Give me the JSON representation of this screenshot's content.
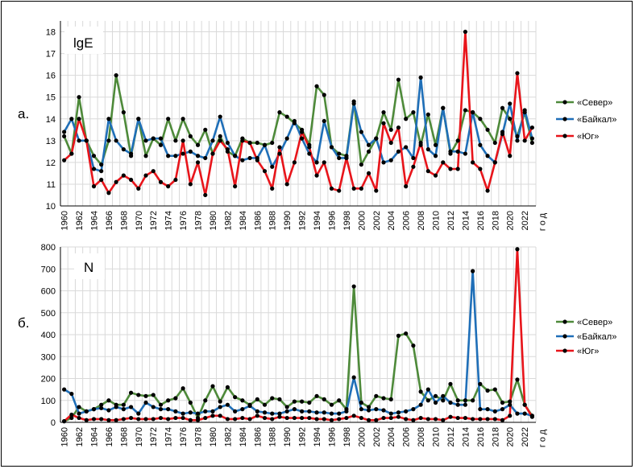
{
  "chart_data": [
    {
      "type": "line",
      "panel_label": "а.",
      "title": "lgE",
      "xlabel": "год",
      "ylim": [
        10,
        18.5
      ],
      "yticks": [
        10,
        11,
        12,
        13,
        14,
        15,
        16,
        17,
        18
      ],
      "x": [
        1960,
        1961,
        1962,
        1963,
        1964,
        1965,
        1966,
        1967,
        1968,
        1969,
        1970,
        1971,
        1972,
        1973,
        1974,
        1975,
        1976,
        1977,
        1978,
        1979,
        1980,
        1981,
        1982,
        1983,
        1984,
        1985,
        1986,
        1987,
        1988,
        1989,
        1990,
        1991,
        1992,
        1993,
        1994,
        1995,
        1996,
        1997,
        1998,
        1999,
        2000,
        2001,
        2002,
        2003,
        2004,
        2005,
        2006,
        2007,
        2008,
        2009,
        2010,
        2011,
        2012,
        2013,
        2014,
        2015,
        2016,
        2017,
        2018,
        2019,
        2020,
        2021,
        2022,
        2023
      ],
      "xticks": [
        "1960",
        "1962",
        "1964",
        "1966",
        "1968",
        "1970",
        "1972",
        "1974",
        "1976",
        "1978",
        "1980",
        "1982",
        "1984",
        "1986",
        "1988",
        "1990",
        "1992",
        "1994",
        "1996",
        "1998",
        "2000",
        "2002",
        "2004",
        "2006",
        "2008",
        "2010",
        "2012",
        "2014",
        "2016",
        "2018",
        "2020",
        "2022"
      ],
      "grid": true,
      "legend": "right",
      "series": [
        {
          "name": "«Север»",
          "color": "#4e8a3a",
          "values": [
            13.2,
            12.4,
            15.0,
            13.0,
            12.3,
            11.9,
            13.0,
            16.0,
            14.3,
            12.3,
            14.0,
            12.3,
            13.1,
            12.8,
            14.0,
            13.0,
            14.0,
            13.2,
            12.8,
            13.5,
            12.4,
            13.2,
            12.5,
            12.3,
            13.1,
            12.9,
            12.9,
            12.8,
            12.9,
            14.3,
            14.1,
            13.8,
            13.5,
            12.8,
            15.5,
            15.1,
            12.7,
            12.4,
            12.3,
            14.8,
            11.9,
            12.5,
            13.1,
            14.3,
            13.5,
            15.8,
            14.0,
            14.3,
            12.8,
            14.2,
            12.8,
            14.5,
            12.4,
            13.0,
            14.4,
            14.3,
            14.0,
            13.5,
            12.9,
            14.5,
            14.0,
            13.2,
            14.3,
            12.9
          ]
        },
        {
          "name": "«Байкал»",
          "color": "#1f6fb8",
          "values": [
            13.4,
            14.0,
            13.0,
            13.0,
            11.7,
            11.6,
            14.0,
            13.0,
            12.6,
            12.4,
            14.0,
            13.0,
            13.1,
            13.1,
            12.3,
            12.3,
            12.4,
            12.5,
            12.3,
            12.2,
            13.0,
            14.1,
            12.9,
            12.3,
            12.1,
            12.2,
            12.2,
            12.8,
            11.8,
            12.4,
            13.1,
            13.9,
            13.1,
            12.4,
            12.0,
            13.9,
            12.7,
            12.2,
            12.2,
            14.7,
            13.4,
            12.8,
            13.1,
            12.0,
            12.1,
            12.5,
            12.7,
            12.2,
            15.9,
            12.6,
            12.3,
            14.5,
            12.5,
            12.5,
            12.4,
            14.3,
            12.8,
            12.3,
            12.0,
            13.3,
            14.7,
            13.0,
            14.4,
            13.1
          ]
        },
        {
          "name": "«Юг»",
          "color": "#e8141a",
          "values": [
            12.1,
            12.4,
            14.0,
            13.0,
            10.9,
            11.2,
            10.6,
            11.1,
            11.4,
            11.2,
            10.8,
            11.4,
            11.6,
            11.1,
            10.9,
            11.2,
            13.0,
            11.0,
            12.0,
            10.5,
            12.4,
            13.0,
            12.6,
            10.9,
            13.0,
            12.9,
            12.1,
            11.6,
            10.8,
            12.7,
            11.0,
            12.0,
            13.4,
            12.7,
            11.4,
            12.0,
            10.8,
            10.7,
            12.2,
            10.8,
            10.8,
            11.5,
            10.7,
            13.8,
            12.9,
            13.6,
            10.9,
            11.8,
            12.9,
            11.6,
            11.4,
            12.0,
            11.7,
            11.7,
            18.0,
            12.0,
            11.7,
            10.7,
            12.0,
            13.4,
            12.3,
            16.1,
            13.0,
            13.6
          ]
        }
      ]
    },
    {
      "type": "line",
      "panel_label": "б.",
      "title": "N",
      "xlabel": "год",
      "ylim": [
        0,
        800
      ],
      "yticks": [
        0,
        100,
        200,
        300,
        400,
        500,
        600,
        700,
        800
      ],
      "x": [
        1960,
        1961,
        1962,
        1963,
        1964,
        1965,
        1966,
        1967,
        1968,
        1969,
        1970,
        1971,
        1972,
        1973,
        1974,
        1975,
        1976,
        1977,
        1978,
        1979,
        1980,
        1981,
        1982,
        1983,
        1984,
        1985,
        1986,
        1987,
        1988,
        1989,
        1990,
        1991,
        1992,
        1993,
        1994,
        1995,
        1996,
        1997,
        1998,
        1999,
        2000,
        2001,
        2002,
        2003,
        2004,
        2005,
        2006,
        2007,
        2008,
        2009,
        2010,
        2011,
        2012,
        2013,
        2014,
        2015,
        2016,
        2017,
        2018,
        2019,
        2020,
        2021,
        2022,
        2023
      ],
      "xticks": [
        "1960",
        "1962",
        "1964",
        "1966",
        "1968",
        "1970",
        "1972",
        "1974",
        "1976",
        "1978",
        "1980",
        "1982",
        "1984",
        "1986",
        "1988",
        "1990",
        "1992",
        "1994",
        "1996",
        "1998",
        "2000",
        "2002",
        "2004",
        "2006",
        "2008",
        "2010",
        "2012",
        "2014",
        "2016",
        "2018",
        "2020",
        "2022"
      ],
      "grid": true,
      "legend": "right",
      "series": [
        {
          "name": "«Север»",
          "color": "#4e8a3a",
          "values": [
            5,
            20,
            70,
            50,
            60,
            80,
            100,
            80,
            80,
            135,
            125,
            120,
            125,
            80,
            100,
            110,
            155,
            90,
            20,
            100,
            165,
            95,
            160,
            115,
            100,
            80,
            105,
            80,
            110,
            105,
            70,
            95,
            95,
            90,
            120,
            105,
            80,
            100,
            60,
            620,
            90,
            70,
            120,
            110,
            105,
            395,
            405,
            350,
            140,
            100,
            120,
            100,
            175,
            100,
            100,
            100,
            175,
            145,
            150,
            90,
            95,
            195,
            80,
            30
          ]
        },
        {
          "name": "«Байкал»",
          "color": "#1f6fb8",
          "values": [
            150,
            130,
            40,
            50,
            60,
            65,
            55,
            70,
            60,
            70,
            40,
            90,
            70,
            60,
            60,
            50,
            40,
            45,
            40,
            50,
            50,
            70,
            80,
            50,
            60,
            75,
            50,
            45,
            40,
            40,
            50,
            60,
            50,
            50,
            45,
            45,
            40,
            40,
            50,
            205,
            60,
            55,
            60,
            55,
            40,
            45,
            50,
            60,
            80,
            150,
            90,
            120,
            90,
            80,
            80,
            690,
            60,
            60,
            50,
            60,
            80,
            40,
            40,
            30
          ]
        },
        {
          "name": "«Юг»",
          "color": "#e8141a",
          "values": [
            5,
            35,
            20,
            10,
            15,
            15,
            10,
            10,
            15,
            20,
            15,
            15,
            15,
            20,
            15,
            20,
            20,
            10,
            10,
            20,
            30,
            30,
            15,
            15,
            20,
            15,
            30,
            20,
            15,
            25,
            20,
            20,
            20,
            20,
            15,
            15,
            10,
            15,
            20,
            30,
            20,
            10,
            10,
            20,
            20,
            25,
            15,
            10,
            20,
            15,
            15,
            10,
            25,
            20,
            20,
            15,
            15,
            15,
            15,
            10,
            30,
            790,
            80,
            25
          ]
        }
      ]
    }
  ]
}
